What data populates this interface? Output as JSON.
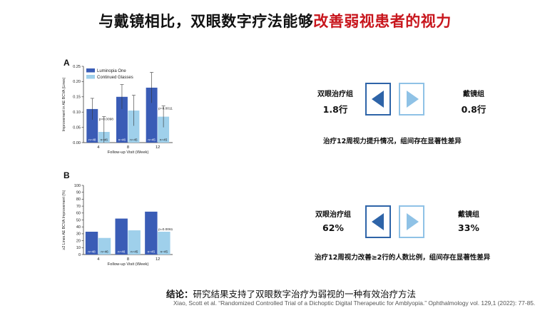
{
  "slide": {
    "title_main": "与戴镜相比，双眼数字疗法能够",
    "title_highlight": "改善弱视患者的视力",
    "colors": {
      "highlight": "#c8161d",
      "luminopia": "#3a5cb6",
      "glasses": "#9fd0eb"
    }
  },
  "panel_a": {
    "letter": "A"
  },
  "panel_b": {
    "letter": "B"
  },
  "comparison_1": {
    "dichoptic_label": "双眼治疗组",
    "dichoptic_value": "1.8行",
    "glasses_label": "戴镜组",
    "glasses_value": "0.8行",
    "note": "治疗12周视力提升情况，组间存在显著性差异"
  },
  "comparison_2": {
    "dichoptic_label": "双眼治疗组",
    "dichoptic_value": "62%",
    "glasses_label": "戴镜组",
    "glasses_value": "33%",
    "note": "治疗12周视力改善≥2行的人数比例，组间存在显著性差异"
  },
  "arrow_icons": {
    "left": "left-arrow-icon",
    "right": "right-arrow-icon"
  },
  "conclusion": {
    "label": "结论：",
    "text": "研究结果支持了双眼数字治疗为弱视的一种有效治疗方法"
  },
  "citation": "Xiao, Scott et al. “Randomized Controlled Trial of a Dichoptic Digital Therapeutic for Amblyopia.” Ophthalmology vol. 129,1 (2022): 77-85.",
  "chart_data": [
    {
      "type": "bar",
      "panel": "A",
      "categories": [
        "4",
        "8",
        "12"
      ],
      "series": [
        {
          "name": "Luminopia One",
          "values": [
            0.11,
            0.15,
            0.18
          ],
          "errors": [
            0.035,
            0.04,
            0.05
          ],
          "n_labels": [
            "n=48",
            "n=46",
            "n=45"
          ]
        },
        {
          "name": "Continued Glasses",
          "values": [
            0.035,
            0.105,
            0.085
          ],
          "errors": [
            0.05,
            0.05,
            0.035
          ],
          "n_labels": [
            "n=46",
            "n=45",
            "n=45"
          ]
        }
      ],
      "p_values": [
        "p=0.0098",
        "",
        "p=0.0011"
      ],
      "xlabel": "Follow-up Visit (Week)",
      "ylabel": "Improvement in AE BCVA (Lines)",
      "ylim": [
        0,
        0.25
      ],
      "yticks": [
        "0.00",
        "0.05",
        "0.10",
        "0.15",
        "0.20",
        "0.25"
      ],
      "legend": "top-left"
    },
    {
      "type": "bar",
      "panel": "B",
      "categories": [
        "4",
        "8",
        "12"
      ],
      "series": [
        {
          "name": "Luminopia One",
          "values": [
            33,
            52,
            62
          ],
          "n_labels": [
            "n=48",
            "n=46",
            "n=45"
          ]
        },
        {
          "name": "Continued Glasses",
          "values": [
            24,
            35,
            33
          ],
          "n_labels": [
            "n=46",
            "n=45",
            "n=45"
          ]
        }
      ],
      "p_values": [
        "",
        "",
        "p=0.0061"
      ],
      "xlabel": "Follow-up Visit (Week)",
      "ylabel": "≥2 Lines AE BCVA Improvement (%)",
      "ylim": [
        0,
        100
      ],
      "yticks": [
        "0",
        "10",
        "20",
        "30",
        "40",
        "50",
        "60",
        "70",
        "80",
        "90",
        "100"
      ],
      "legend": "none"
    }
  ]
}
